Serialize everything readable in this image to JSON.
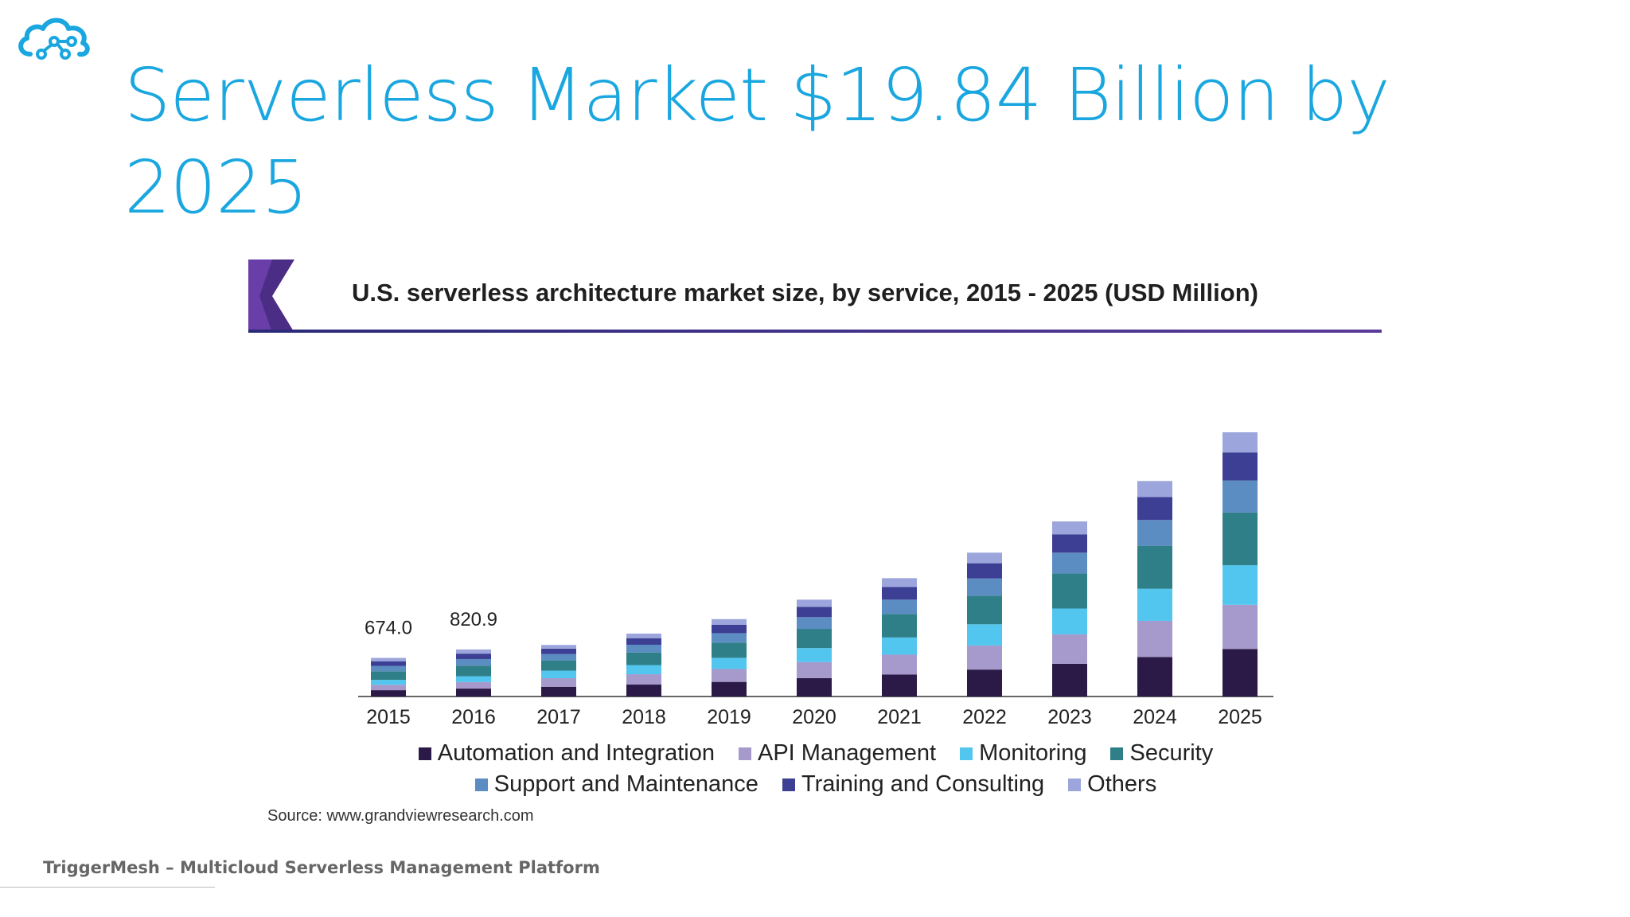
{
  "slide": {
    "title": "Serverless Market $19.84 Billion by 2025",
    "footer": "TriggerMesh – Multicloud Serverless Management Platform"
  },
  "logo": {
    "icon": "cloud-network-icon",
    "color": "#1aa7e0"
  },
  "chart_data": {
    "type": "bar",
    "stacked": true,
    "title": "U.S. serverless architecture market size, by service, 2015 - 2025 (USD Million)",
    "categories": [
      "2015",
      "2016",
      "2017",
      "2018",
      "2019",
      "2020",
      "2021",
      "2022",
      "2023",
      "2024",
      "2025"
    ],
    "series": [
      {
        "name": "Automation and Integration",
        "color": "#2b1a47",
        "values": [
          110,
          138,
          170,
          208,
          255,
          320,
          385,
          470,
          570,
          690,
          830
        ]
      },
      {
        "name": "API Management",
        "color": "#a59acb",
        "values": [
          95,
          115,
          150,
          180,
          225,
          280,
          345,
          420,
          515,
          630,
          770
        ]
      },
      {
        "name": "Monitoring",
        "color": "#52c6ef",
        "values": [
          85,
          100,
          130,
          160,
          195,
          245,
          300,
          370,
          450,
          560,
          690
        ]
      },
      {
        "name": "Security",
        "color": "#2f7f88",
        "values": [
          150,
          185,
          180,
          220,
          265,
          335,
          410,
          500,
          610,
          750,
          920
        ]
      },
      {
        "name": "Support and Maintenance",
        "color": "#5b8cc2",
        "values": [
          95,
          115,
          110,
          135,
          165,
          205,
          250,
          300,
          365,
          450,
          560
        ]
      },
      {
        "name": "Training and Consulting",
        "color": "#3c3f93",
        "values": [
          80,
          95,
          95,
          115,
          145,
          180,
          220,
          265,
          320,
          400,
          490
        ]
      },
      {
        "name": "Others",
        "color": "#9ca6dd",
        "values": [
          59,
          73,
          65,
          80,
          100,
          125,
          155,
          185,
          225,
          280,
          350
        ]
      }
    ],
    "data_labels": [
      {
        "category": "2015",
        "text": "674.0"
      },
      {
        "category": "2016",
        "text": "820.9"
      }
    ],
    "ylim": [
      0,
      5000
    ],
    "grid": false,
    "legend_position": "bottom",
    "source": "Source: www.grandviewresearch.com"
  }
}
